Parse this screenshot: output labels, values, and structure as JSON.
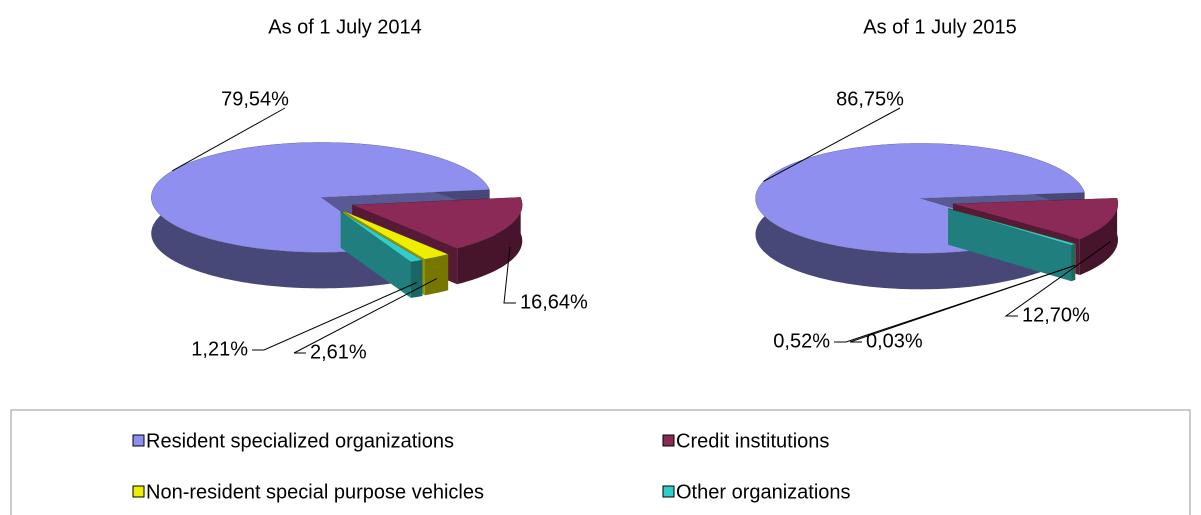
{
  "chart_data": [
    {
      "type": "pie",
      "title": "As of 1 July 2014",
      "values": [
        79.54,
        16.64,
        2.61,
        1.21
      ],
      "value_labels": [
        "79,54%",
        "16,64%",
        "2,61%",
        "1,21%"
      ]
    },
    {
      "type": "pie",
      "title": "As of 1 July 2015",
      "values": [
        86.75,
        12.7,
        0.03,
        0.52
      ],
      "value_labels": [
        "86,75%",
        "12,70%",
        "0,03%",
        "0,52%"
      ]
    }
  ],
  "legend": {
    "categories": [
      "Resident specialized organizations",
      "Credit institutions",
      "Non-resident special purpose vehicles",
      "Other organizations"
    ],
    "colors": [
      "#8f8fef",
      "#8b2a57",
      "#eeee00",
      "#33cccc"
    ]
  }
}
